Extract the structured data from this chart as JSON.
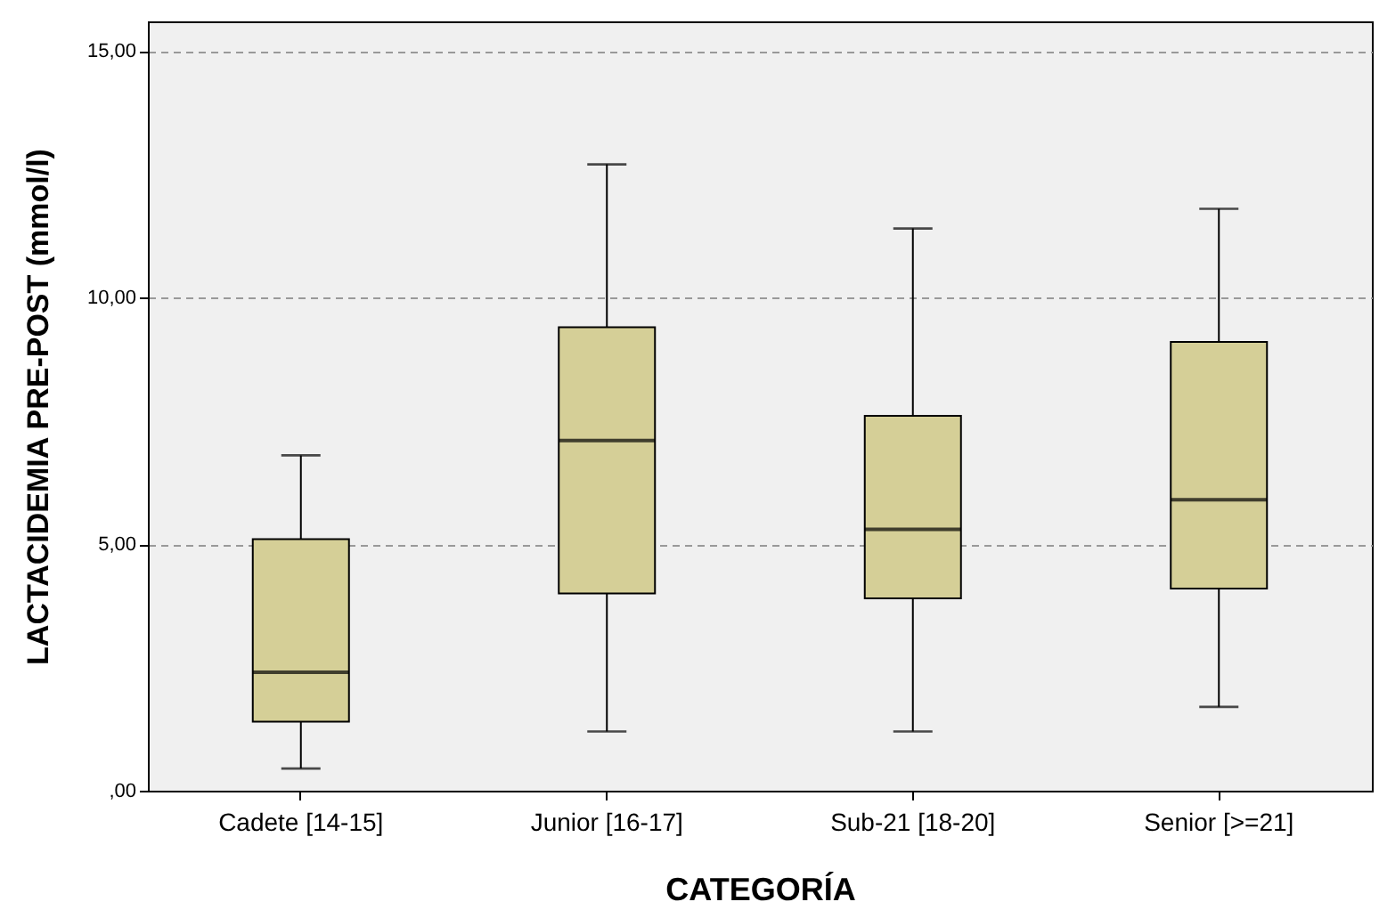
{
  "chart_data": {
    "type": "box",
    "xlabel": "CATEGORÍA",
    "ylabel": "LACTACIDEMIA PRE-POST (mmol/l)",
    "categories": [
      "Cadete [14-15]",
      "Junior [16-17]",
      "Sub-21 [18-20]",
      "Senior [>=21]"
    ],
    "color": "#d5cf97",
    "boxes": [
      {
        "low": 0.45,
        "q1": 1.4,
        "median": 2.4,
        "q3": 5.1,
        "high": 6.8
      },
      {
        "low": 1.2,
        "q1": 4.0,
        "median": 7.1,
        "q3": 9.4,
        "high": 12.7
      },
      {
        "low": 1.2,
        "q1": 3.9,
        "median": 5.3,
        "q3": 7.6,
        "high": 11.4
      },
      {
        "low": 1.7,
        "q1": 4.1,
        "median": 5.9,
        "q3": 9.1,
        "high": 11.8
      }
    ],
    "ylim": [
      0,
      15.6
    ],
    "yticks": [
      {
        "value": 0,
        "label": ",00"
      },
      {
        "value": 5,
        "label": "5,00"
      },
      {
        "value": 10,
        "label": "10,00"
      },
      {
        "value": 15,
        "label": "15,00"
      }
    ],
    "grid": "y"
  }
}
